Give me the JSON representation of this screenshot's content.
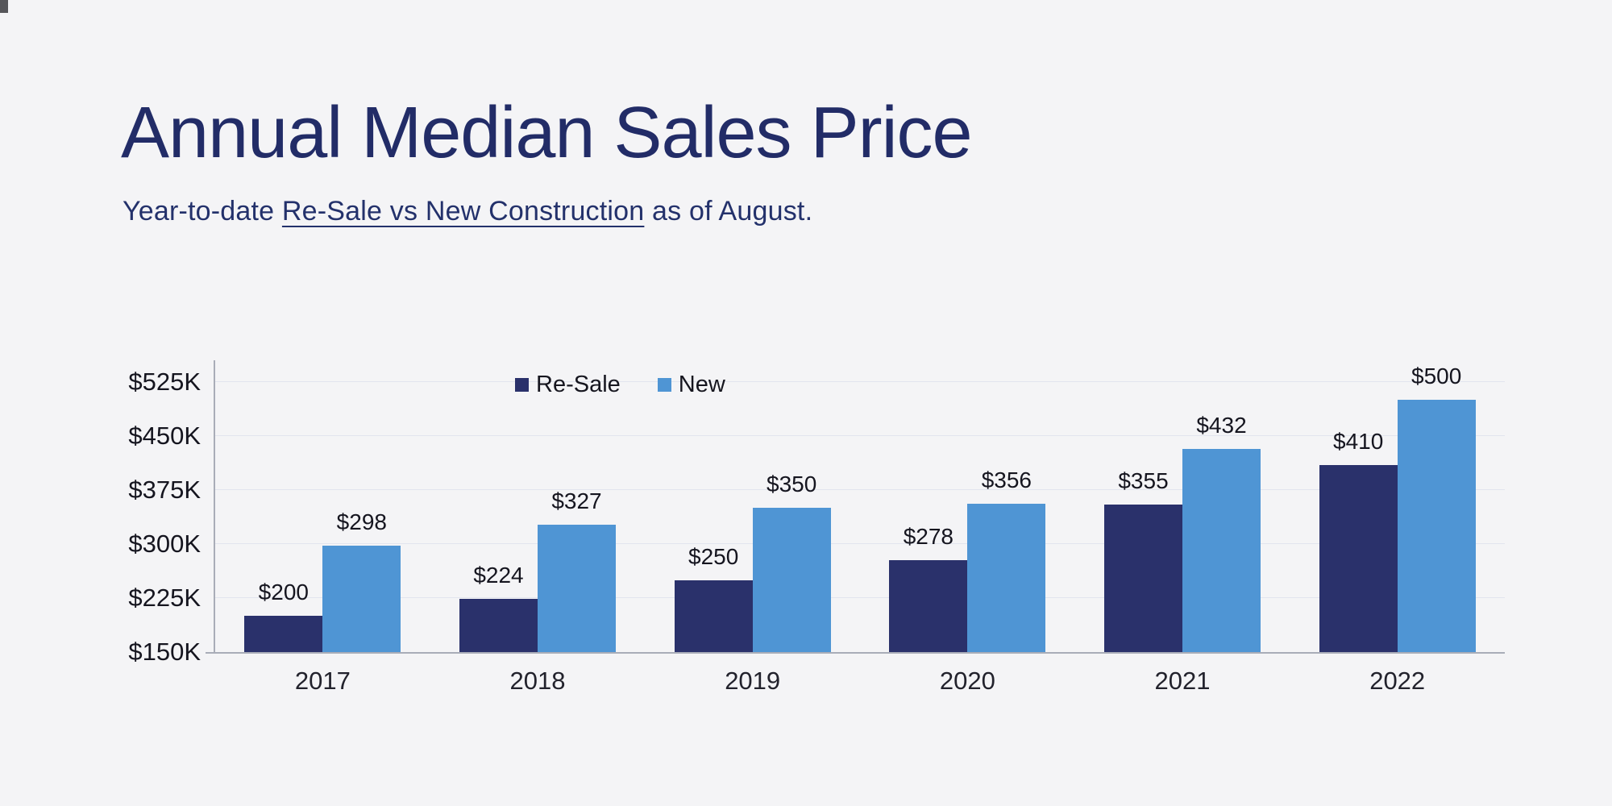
{
  "page": {
    "background": "#f4f4f6"
  },
  "header": {
    "title": "Annual Median Sales Price",
    "subtitle_prefix": "Year-to-date ",
    "subtitle_link": "Re-Sale vs New Construction",
    "subtitle_suffix": " as of August."
  },
  "chart_data": {
    "type": "bar",
    "title": "Annual Median Sales Price",
    "subtitle": "Year-to-date Re-Sale vs New Construction as of August.",
    "categories": [
      "2017",
      "2018",
      "2019",
      "2020",
      "2021",
      "2022"
    ],
    "series": [
      {
        "name": "Re-Sale",
        "color": "#2a316b",
        "values": [
          200,
          224,
          250,
          278,
          355,
          410
        ],
        "labels": [
          "$200",
          "$224",
          "$250",
          "$278",
          "$355",
          "$410"
        ]
      },
      {
        "name": "New",
        "color": "#4f95d4",
        "values": [
          298,
          327,
          350,
          356,
          432,
          500
        ],
        "labels": [
          "$298",
          "$327",
          "$350",
          "$356",
          "$432",
          "$500"
        ]
      }
    ],
    "ylim": [
      150,
      525
    ],
    "yticks": [
      {
        "value": 150,
        "label": "$150K"
      },
      {
        "value": 225,
        "label": "$225K"
      },
      {
        "value": 300,
        "label": "$300K"
      },
      {
        "value": 375,
        "label": "$375K"
      },
      {
        "value": 450,
        "label": "$450K"
      },
      {
        "value": 525,
        "label": "$525K"
      }
    ],
    "units": "thousand USD",
    "grid": true,
    "legend_position": "top-center"
  }
}
